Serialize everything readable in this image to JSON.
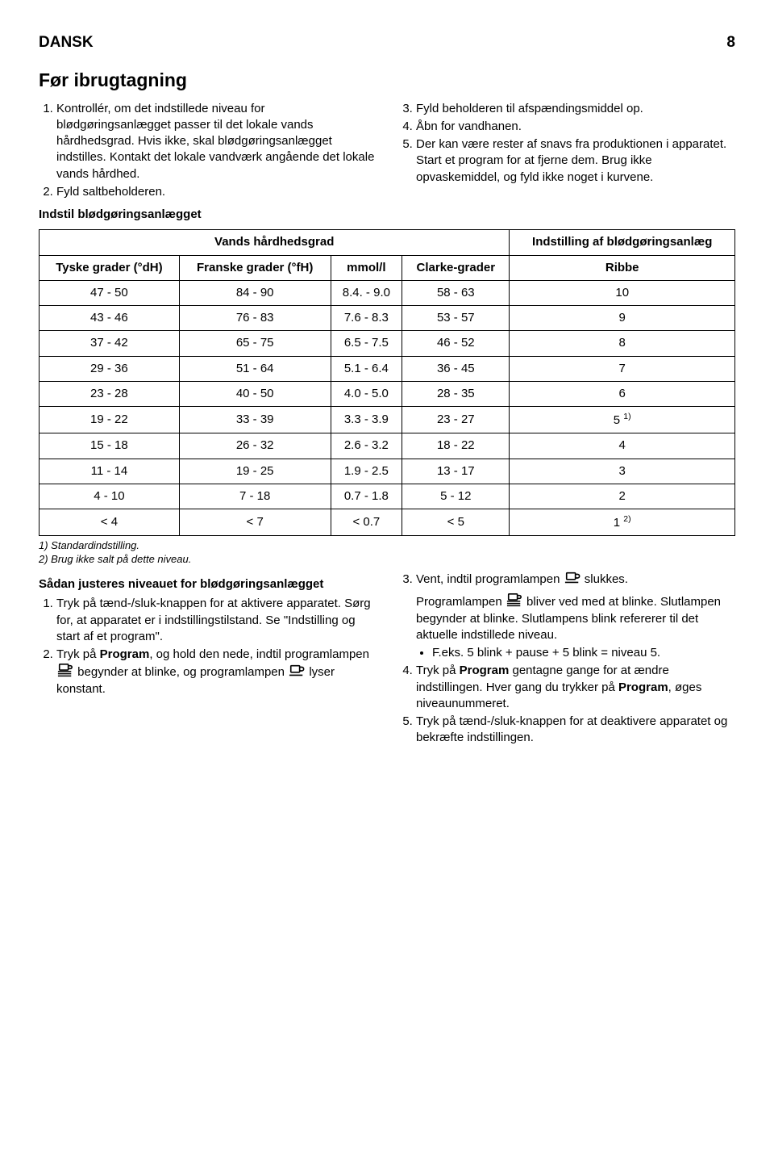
{
  "header": {
    "language": "DANSK",
    "page": "8"
  },
  "title": "Før ibrugtagning",
  "left_list": [
    "Kontrollér, om det indstillede niveau for blødgøringsanlægget passer til det lokale vands hårdhedsgrad. Hvis ikke, skal blødgøringsanlægget indstilles. Kontakt det lokale vandværk angående det lokale vands hårdhed.",
    "Fyld saltbeholderen."
  ],
  "right_list": [
    "Fyld beholderen til afspændingsmiddel op.",
    "Åbn for vandhanen.",
    "Der kan være rester af snavs fra produktionen i apparatet. Start et program for at fjerne dem. Brug ikke opvaskemiddel, og fyld ikke noget i kurvene."
  ],
  "right_list_start": 3,
  "subhead1": "Indstil blødgøringsanlægget",
  "table": {
    "header_spanning": "Vands hårdhedsgrad",
    "header_last": "Indstilling af blødgøringsanlæg",
    "cols": [
      "Tyske grader (°dH)",
      "Franske grader (°fH)",
      "mmol/l",
      "Clarke-grader",
      "Ribbe"
    ],
    "rows": [
      [
        "47 - 50",
        "84 - 90",
        "8.4. - 9.0",
        "58 - 63",
        "10"
      ],
      [
        "43 - 46",
        "76 - 83",
        "7.6 - 8.3",
        "53 - 57",
        "9"
      ],
      [
        "37 - 42",
        "65 - 75",
        "6.5 - 7.5",
        "46 - 52",
        "8"
      ],
      [
        "29 - 36",
        "51 - 64",
        "5.1 - 6.4",
        "36 - 45",
        "7"
      ],
      [
        "23 - 28",
        "40 - 50",
        "4.0 - 5.0",
        "28 - 35",
        "6"
      ],
      [
        "19 - 22",
        "33 - 39",
        "3.3 - 3.9",
        "23 - 27",
        "5 1)"
      ],
      [
        "15 - 18",
        "26 - 32",
        "2.6 - 3.2",
        "18 - 22",
        "4"
      ],
      [
        "11 - 14",
        "19 - 25",
        "1.9 - 2.5",
        "13 - 17",
        "3"
      ],
      [
        "4 - 10",
        "7 - 18",
        "0.7 - 1.8",
        "5 - 12",
        "2"
      ],
      [
        "< 4",
        "< 7",
        "< 0.7",
        "< 5",
        "1 2)"
      ]
    ]
  },
  "footnotes": [
    "1) Standardindstilling.",
    "2) Brug ikke salt på dette niveau."
  ],
  "subhead2": "Sådan justeres niveauet for blødgøringsanlægget",
  "bottom_left": {
    "item1": "Tryk på tænd-/sluk-knappen for at aktivere apparatet. Sørg for, at apparatet er i indstillingstilstand. Se \"Indstilling og start af et program\".",
    "item2_pre": "Tryk på ",
    "item2_bold": "Program",
    "item2_mid1": ", og hold den nede, indtil programlampen ",
    "item2_mid2": " begynder at blinke, og programlampen ",
    "item2_post": " lyser konstant."
  },
  "bottom_right": {
    "item3_pre": "Vent, indtil programlampen ",
    "item3_post": " slukkes.",
    "item3_para_pre": "Programlampen ",
    "item3_para_post": " bliver ved med at blinke. Slutlampen begynder at blinke. Slutlampens blink refererer til det aktuelle indstillede niveau.",
    "bullet1": "F.eks. 5 blink + pause + 5 blink = niveau 5.",
    "item4_pre": "Tryk på ",
    "item4_bold1": "Program",
    "item4_mid": " gentagne gange for at ændre indstillingen. Hver gang du trykker på ",
    "item4_bold2": "Program",
    "item4_post": ", øges niveaunummeret.",
    "item5": "Tryk på tænd-/sluk-knappen for at deaktivere apparatet og bekræfte indstillingen."
  }
}
